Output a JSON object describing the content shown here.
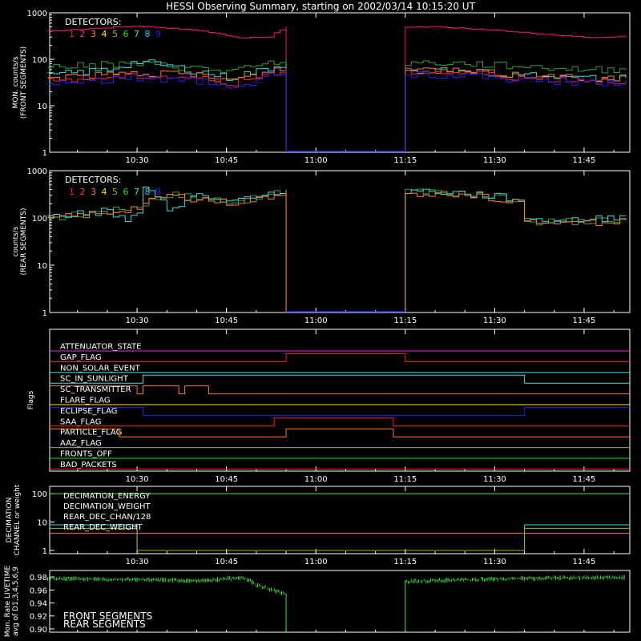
{
  "title": "HESSI Observing Summary, starting on 2002/03/14 10:15:20 UT",
  "colors": {
    "c1": "#ff2020",
    "c2": "#ff3860",
    "c3": "#ff7a30",
    "c4": "#ffe020",
    "c5": "#a0b030",
    "c6": "#20e020",
    "c7": "#30e0e0",
    "c8": "#30c8ff",
    "c9": "#2020ff",
    "pink": "#ff1080",
    "magenta": "#e030e0",
    "green": "#40e040",
    "darkgreen": "#30a030"
  },
  "chart_data": [
    {
      "type": "line",
      "name": "front",
      "ylabel": [
        "MON. counts/s",
        "(FRONT SEGMENTS)"
      ],
      "ylog": true,
      "ylim": [
        1,
        1000
      ],
      "yticks": [
        "1",
        "10",
        "100",
        "1000"
      ],
      "xticks": [
        "10:30",
        "10:45",
        "11:00",
        "11:15",
        "11:30",
        "11:45"
      ],
      "legend_title": "DETECTORS:",
      "legend_items": [
        "1",
        "2",
        "3",
        "4",
        "5",
        "6",
        "7",
        "8",
        "9"
      ],
      "gap": [
        "10:55",
        "11:15"
      ],
      "series": [
        {
          "id": "9",
          "color_key": "pink",
          "x": [
            "10:15",
            "10:30",
            "10:40",
            "10:47",
            "10:52",
            "10:55",
            "11:15",
            "11:20",
            "11:30",
            "11:40",
            "11:47",
            "11:52"
          ],
          "y": [
            400,
            520,
            420,
            290,
            300,
            500,
            480,
            500,
            420,
            330,
            290,
            320
          ]
        },
        {
          "id": "5",
          "color_key": "darkgreen",
          "x": [
            "10:15",
            "10:30",
            "10:40",
            "10:45",
            "10:50",
            "10:55",
            "11:15",
            "11:25",
            "11:35",
            "11:45",
            "11:52"
          ],
          "y": [
            70,
            80,
            65,
            55,
            70,
            100,
            85,
            80,
            70,
            60,
            60
          ]
        },
        {
          "id": "7",
          "color_key": "c7",
          "x": [
            "10:15",
            "10:25",
            "10:30",
            "10:40",
            "10:45",
            "10:50",
            "10:55",
            "11:15",
            "11:25",
            "11:35",
            "11:45",
            "11:52"
          ],
          "y": [
            45,
            60,
            90,
            55,
            40,
            55,
            80,
            60,
            55,
            45,
            40,
            40
          ]
        },
        {
          "id": "3",
          "color_key": "c3",
          "x": [
            "10:15",
            "10:30",
            "10:40",
            "10:45",
            "10:50",
            "10:55",
            "11:15",
            "11:25",
            "11:35",
            "11:45",
            "11:52"
          ],
          "y": [
            40,
            50,
            45,
            35,
            45,
            70,
            60,
            55,
            45,
            40,
            40
          ]
        },
        {
          "id": "1",
          "color_key": "c1",
          "x": [
            "10:15",
            "10:30",
            "10:40",
            "10:45",
            "10:50",
            "10:55",
            "11:15",
            "11:25",
            "11:35",
            "11:45",
            "11:52"
          ],
          "y": [
            35,
            45,
            40,
            30,
            40,
            65,
            55,
            50,
            40,
            35,
            35
          ]
        },
        {
          "id": "8",
          "color_key": "c9",
          "x": [
            "10:15",
            "10:30",
            "10:40",
            "10:45",
            "10:50",
            "10:55",
            "11:15",
            "11:25",
            "11:35",
            "11:45",
            "11:52"
          ],
          "y": [
            30,
            40,
            35,
            22,
            35,
            60,
            50,
            45,
            35,
            32,
            32
          ]
        }
      ]
    },
    {
      "type": "line",
      "name": "rear",
      "ylabel": [
        "counts/s",
        "(REAR SEGMENTS)"
      ],
      "ylog": true,
      "ylim": [
        1,
        1000
      ],
      "yticks": [
        "1",
        "10",
        "100",
        "1000"
      ],
      "xticks": [
        "10:30",
        "10:45",
        "11:00",
        "11:15",
        "11:30",
        "11:45"
      ],
      "legend_title": "DETECTORS:",
      "legend_items": [
        "1",
        "2",
        "3",
        "4",
        "5",
        "6",
        "7",
        "8",
        "9"
      ],
      "gap": [
        "10:55",
        "11:15"
      ],
      "series": [
        {
          "id": "5",
          "color_key": "darkgreen",
          "x": [
            "10:15",
            "10:25",
            "10:30",
            "10:35",
            "10:45",
            "10:50",
            "10:55",
            "11:15",
            "11:25",
            "11:35",
            "11:35",
            "11:45",
            "11:52"
          ],
          "y": [
            100,
            140,
            180,
            320,
            230,
            260,
            380,
            360,
            320,
            230,
            85,
            85,
            95
          ]
        },
        {
          "id": "7",
          "color_key": "c7",
          "x": [
            "10:15",
            "10:25",
            "10:28",
            "10:30",
            "10:31",
            "10:35",
            "10:40",
            "10:45",
            "10:50",
            "10:55",
            "11:15",
            "11:25",
            "11:35",
            "11:35",
            "11:45",
            "11:52"
          ],
          "y": [
            105,
            140,
            80,
            140,
            400,
            150,
            300,
            220,
            260,
            390,
            380,
            330,
            240,
            90,
            90,
            110
          ]
        },
        {
          "id": "3",
          "color_key": "c3",
          "x": [
            "10:15",
            "10:25",
            "10:30",
            "10:35",
            "10:45",
            "10:50",
            "10:55",
            "11:15",
            "11:25",
            "11:35",
            "11:35",
            "11:45",
            "11:52"
          ],
          "y": [
            95,
            130,
            170,
            300,
            210,
            250,
            360,
            340,
            300,
            220,
            80,
            80,
            90
          ]
        }
      ]
    }
  ],
  "flags_panel": {
    "ylabel": "Flags",
    "xticks": [
      "10:30",
      "10:45",
      "11:00",
      "11:15",
      "11:30",
      "11:45"
    ],
    "flags": [
      {
        "label": "ATTENUATOR_STATE",
        "color_key": "magenta",
        "high": []
      },
      {
        "label": "GAP_FLAG",
        "color_key": "c1",
        "high": [
          [
            "10:55",
            "11:15"
          ]
        ]
      },
      {
        "label": "NON_SOLAR_EVENT",
        "color_key": "c7",
        "high": []
      },
      {
        "label": "SC_IN_SUNLIGHT",
        "color_key": "c7",
        "high": [
          [
            "10:31",
            "11:35"
          ]
        ]
      },
      {
        "label": "SC_TRANSMITTER",
        "color_key": "c3",
        "high": [
          [
            "10:15",
            "10:30"
          ],
          [
            "10:31",
            "10:37"
          ],
          [
            "10:38",
            "10:42"
          ]
        ]
      },
      {
        "label": "FLARE_FLAG",
        "color_key": "c4",
        "high": []
      },
      {
        "label": "ECLIPSE_FLAG",
        "color_key": "c9",
        "high": [
          [
            "10:15",
            "10:31"
          ],
          [
            "11:35",
            "11:52"
          ]
        ]
      },
      {
        "label": "SAA_FLAG",
        "color_key": "c1",
        "high": [
          [
            "10:53",
            "11:13"
          ]
        ]
      },
      {
        "label": "PARTICLE_FLAG",
        "color_key": "c3",
        "high": [
          [
            "10:15",
            "10:27"
          ],
          [
            "10:55",
            "11:13"
          ]
        ]
      },
      {
        "label": "AAZ_FLAG",
        "color_key": "c5",
        "high": []
      },
      {
        "label": "FRONTS_OFF",
        "color_key": "c6",
        "high": []
      },
      {
        "label": "BAD_PACKETS",
        "color_key": "c1",
        "high": []
      }
    ]
  },
  "decimation_panel": {
    "ylabel": [
      "DECIMATION",
      "CHANNEL or weight"
    ],
    "yticks": [
      "1",
      "10",
      "100"
    ],
    "xticks": [
      "10:30",
      "10:45",
      "11:00",
      "11:15",
      "11:30",
      "11:45"
    ],
    "legend": [
      {
        "label": "DECIMATION_ENERGY",
        "color_key": "green"
      },
      {
        "label": "DECIMATION_WEIGHT",
        "color_key": "c3"
      },
      {
        "label": "REAR_DEC_CHAN/128",
        "color_key": "c7"
      },
      {
        "label": "REAR_DEC_WEIGHT",
        "color_key": "c5"
      }
    ],
    "series": [
      {
        "label": "DECIMATION_ENERGY",
        "color_key": "green",
        "x": [
          "10:15",
          "11:52"
        ],
        "y": [
          100,
          100
        ]
      },
      {
        "label": "DECIMATION_WEIGHT",
        "color_key": "c3",
        "x": [
          "10:15",
          "11:52"
        ],
        "y": [
          4,
          4
        ]
      },
      {
        "label": "REAR_DEC_CHAN/128",
        "color_key": "c7",
        "x": [
          "10:15",
          "10:30",
          "10:30",
          "11:35",
          "11:35",
          "11:52"
        ],
        "y": [
          8,
          8,
          1,
          1,
          8,
          8
        ]
      },
      {
        "label": "REAR_DEC_WEIGHT",
        "color_key": "c5",
        "x": [
          "10:15",
          "10:30",
          "10:30",
          "11:35",
          "11:35",
          "11:52"
        ],
        "y": [
          6,
          6,
          1,
          1,
          6,
          6
        ]
      }
    ]
  },
  "livetime_panel": {
    "ylabel": [
      "Mon. Rate LIVETIME",
      "avg of D1,3,4,5,6,9"
    ],
    "yticks": [
      "0.90",
      "0.92",
      "0.94",
      "0.96",
      "0.98"
    ],
    "ylim": [
      0.895,
      0.99
    ],
    "legend": [
      {
        "label": "FRONT SEGMENTS",
        "color_key": "green"
      },
      {
        "label": "REAR SEGMENTS",
        "color_key": "darkgreen"
      }
    ],
    "series": [
      {
        "label": "FRONT SEGMENTS",
        "color_key": "green",
        "x": [
          "10:15",
          "10:30",
          "10:40",
          "10:48",
          "10:50",
          "10:55",
          "10:55",
          "11:15",
          "11:15",
          "11:25",
          "11:35",
          "11:52"
        ],
        "y": [
          0.98,
          0.978,
          0.976,
          0.981,
          0.97,
          0.955,
          0.895,
          0.895,
          0.975,
          0.978,
          0.98,
          0.981
        ]
      }
    ]
  }
}
